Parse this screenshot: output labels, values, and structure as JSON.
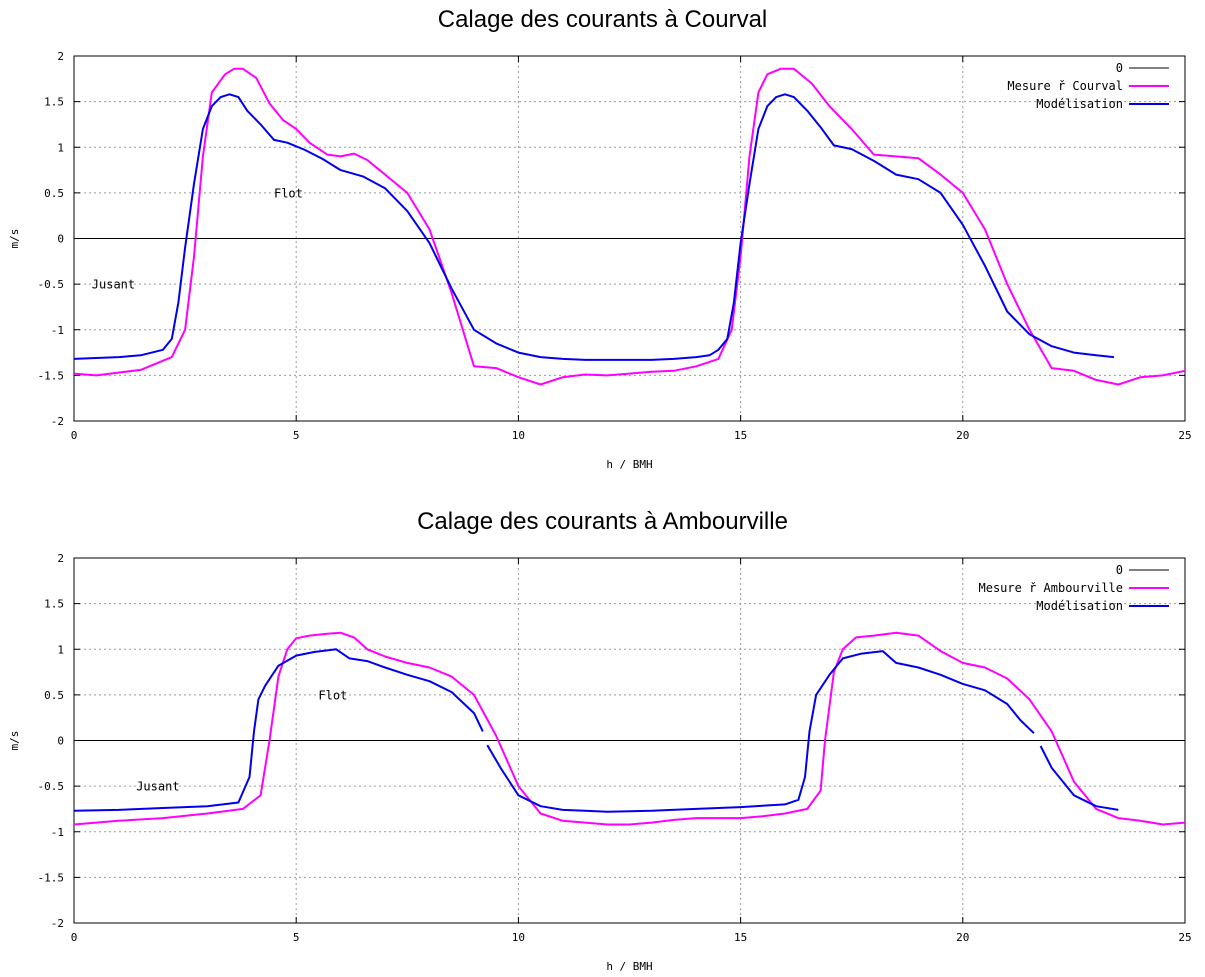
{
  "chart_data": [
    {
      "type": "line",
      "title": "Calage des courants à Courval",
      "xlabel": "h / BMH",
      "ylabel": "m/s",
      "xlim": [
        0,
        25
      ],
      "ylim": [
        -2,
        2
      ],
      "xticks": [
        0,
        5,
        10,
        15,
        20,
        25
      ],
      "yticks": [
        -2,
        -1.5,
        -1,
        -0.5,
        0,
        0.5,
        1,
        1.5,
        2
      ],
      "grid": true,
      "legend_position": "top-right",
      "annotations": [
        {
          "text": "Flot",
          "x": 4.5,
          "y": 0.45
        },
        {
          "text": "Jusant",
          "x": 0.4,
          "y": -0.55
        }
      ],
      "series": [
        {
          "name": "0",
          "color": "#000000",
          "x": [
            0,
            25
          ],
          "y": [
            0,
            0
          ]
        },
        {
          "name": "Mesure ř Courval",
          "color": "#ff00ff",
          "x": [
            0,
            0.5,
            1,
            1.5,
            1.8,
            2.2,
            2.5,
            2.7,
            2.9,
            3.1,
            3.4,
            3.6,
            3.8,
            4.1,
            4.4,
            4.7,
            5,
            5.3,
            5.7,
            6,
            6.3,
            6.6,
            7,
            7.5,
            8,
            8.5,
            9,
            9.5,
            10,
            10.5,
            11,
            11.5,
            12,
            12.5,
            13,
            13.5,
            14,
            14.5,
            14.8,
            15,
            15.2,
            15.4,
            15.6,
            15.9,
            16.2,
            16.6,
            17,
            17.5,
            18,
            18.5,
            19,
            19.5,
            20,
            20.5,
            21,
            21.5,
            22,
            22.5,
            23,
            23.5,
            24,
            24.5,
            25
          ],
          "y": [
            -1.48,
            -1.5,
            -1.47,
            -1.44,
            -1.38,
            -1.3,
            -1.0,
            -0.2,
            0.9,
            1.6,
            1.8,
            1.86,
            1.86,
            1.76,
            1.48,
            1.3,
            1.2,
            1.05,
            0.92,
            0.9,
            0.93,
            0.86,
            0.7,
            0.5,
            0.1,
            -0.6,
            -1.4,
            -1.42,
            -1.52,
            -1.6,
            -1.52,
            -1.49,
            -1.5,
            -1.48,
            -1.46,
            -1.45,
            -1.4,
            -1.32,
            -1.0,
            -0.2,
            0.9,
            1.6,
            1.8,
            1.86,
            1.86,
            1.7,
            1.45,
            1.2,
            0.92,
            0.9,
            0.88,
            0.7,
            0.5,
            0.1,
            -0.5,
            -1.0,
            -1.42,
            -1.45,
            -1.55,
            -1.6,
            -1.52,
            -1.5,
            -1.45
          ]
        },
        {
          "name": "Modélisation",
          "color": "#0000ee",
          "x": [
            0,
            1,
            1.5,
            2,
            2.2,
            2.35,
            2.5,
            2.7,
            2.9,
            3.1,
            3.3,
            3.5,
            3.7,
            3.9,
            4.2,
            4.5,
            4.8,
            5.2,
            5.6,
            6,
            6.5,
            7,
            7.5,
            8,
            8.5,
            9,
            9.5,
            10,
            10.5,
            11,
            11.5,
            12,
            12.5,
            13,
            13.5,
            14,
            14.3,
            14.5,
            14.7,
            14.85,
            15,
            15.2,
            15.4,
            15.6,
            15.8,
            16,
            16.2,
            16.5,
            16.8,
            17.1,
            17.5,
            18,
            18.5,
            19,
            19.5,
            20,
            20.5,
            21,
            21.5,
            22,
            22.5,
            23,
            23.4
          ],
          "y": [
            -1.32,
            -1.3,
            -1.28,
            -1.22,
            -1.1,
            -0.7,
            -0.1,
            0.6,
            1.2,
            1.45,
            1.55,
            1.58,
            1.55,
            1.4,
            1.25,
            1.08,
            1.05,
            0.97,
            0.87,
            0.75,
            0.68,
            0.55,
            0.3,
            -0.05,
            -0.55,
            -1.0,
            -1.15,
            -1.25,
            -1.3,
            -1.32,
            -1.33,
            -1.33,
            -1.33,
            -1.33,
            -1.32,
            -1.3,
            -1.28,
            -1.22,
            -1.1,
            -0.7,
            -0.05,
            0.6,
            1.2,
            1.45,
            1.55,
            1.58,
            1.55,
            1.4,
            1.22,
            1.02,
            0.98,
            0.85,
            0.7,
            0.65,
            0.5,
            0.15,
            -0.3,
            -0.8,
            -1.05,
            -1.18,
            -1.25,
            -1.28,
            -1.3
          ]
        }
      ]
    },
    {
      "type": "line",
      "title": "Calage des courants à Ambourville",
      "xlabel": "h / BMH",
      "ylabel": "m/s",
      "xlim": [
        0,
        25
      ],
      "ylim": [
        -2,
        2
      ],
      "xticks": [
        0,
        5,
        10,
        15,
        20,
        25
      ],
      "yticks": [
        -2,
        -1.5,
        -1,
        -0.5,
        0,
        0.5,
        1,
        1.5,
        2
      ],
      "grid": true,
      "legend_position": "top-right",
      "annotations": [
        {
          "text": "Flot",
          "x": 5.5,
          "y": 0.45
        },
        {
          "text": "Jusant",
          "x": 1.4,
          "y": -0.55
        }
      ],
      "series": [
        {
          "name": "0",
          "color": "#000000",
          "x": [
            0,
            25
          ],
          "y": [
            0,
            0
          ]
        },
        {
          "name": "Mesure ř Ambourville",
          "color": "#ff00ff",
          "x": [
            0,
            1,
            2,
            3,
            3.8,
            4.2,
            4.4,
            4.6,
            4.8,
            5,
            5.3,
            5.7,
            6,
            6.3,
            6.6,
            7,
            7.5,
            8,
            8.5,
            9,
            9.5,
            10,
            10.5,
            11,
            11.5,
            12,
            12.5,
            13,
            13.5,
            14,
            14.5,
            15,
            15.5,
            16,
            16.5,
            16.8,
            16.9,
            17.1,
            17.3,
            17.6,
            18,
            18.5,
            19,
            19.5,
            20,
            20.5,
            21,
            21.5,
            22,
            22.5,
            23,
            23.5,
            24,
            24.5,
            25
          ],
          "y": [
            -0.92,
            -0.88,
            -0.85,
            -0.8,
            -0.75,
            -0.6,
            0.0,
            0.7,
            1.0,
            1.12,
            1.15,
            1.17,
            1.18,
            1.13,
            1.0,
            0.92,
            0.85,
            0.8,
            0.7,
            0.5,
            0.05,
            -0.5,
            -0.8,
            -0.88,
            -0.9,
            -0.92,
            -0.92,
            -0.9,
            -0.87,
            -0.85,
            -0.85,
            -0.85,
            -0.83,
            -0.8,
            -0.75,
            -0.55,
            0.0,
            0.75,
            1.0,
            1.13,
            1.15,
            1.18,
            1.15,
            0.98,
            0.85,
            0.8,
            0.68,
            0.45,
            0.1,
            -0.45,
            -0.75,
            -0.85,
            -0.88,
            -0.92,
            -0.9
          ]
        },
        {
          "name": "Modélisation",
          "color": "#0000ee",
          "x": [
            0,
            1,
            2,
            3,
            3.7,
            3.95,
            4.05,
            4.15,
            4.3,
            4.6,
            5,
            5.4,
            5.9,
            6.2,
            6.6,
            7,
            7.5,
            8,
            8.5,
            9,
            9.2,
            null,
            9.3,
            9.6,
            10,
            10.5,
            11,
            11.5,
            12,
            13,
            14,
            15,
            16,
            16.3,
            16.45,
            16.55,
            16.7,
            17,
            17.3,
            17.7,
            18.2,
            18.5,
            19,
            19.5,
            20,
            20.5,
            21,
            21.3,
            21.6,
            null,
            21.75,
            22,
            22.5,
            23,
            23.5
          ],
          "y": [
            -0.77,
            -0.76,
            -0.74,
            -0.72,
            -0.68,
            -0.4,
            0.1,
            0.45,
            0.6,
            0.82,
            0.93,
            0.97,
            1.0,
            0.9,
            0.87,
            0.8,
            0.72,
            0.65,
            0.53,
            0.3,
            0.1,
            null,
            -0.05,
            -0.3,
            -0.6,
            -0.72,
            -0.76,
            -0.77,
            -0.78,
            -0.77,
            -0.75,
            -0.73,
            -0.7,
            -0.65,
            -0.4,
            0.1,
            0.5,
            0.72,
            0.9,
            0.95,
            0.98,
            0.85,
            0.8,
            0.72,
            0.62,
            0.55,
            0.4,
            0.22,
            0.08,
            null,
            -0.06,
            -0.3,
            -0.6,
            -0.72,
            -0.76
          ]
        }
      ]
    }
  ]
}
